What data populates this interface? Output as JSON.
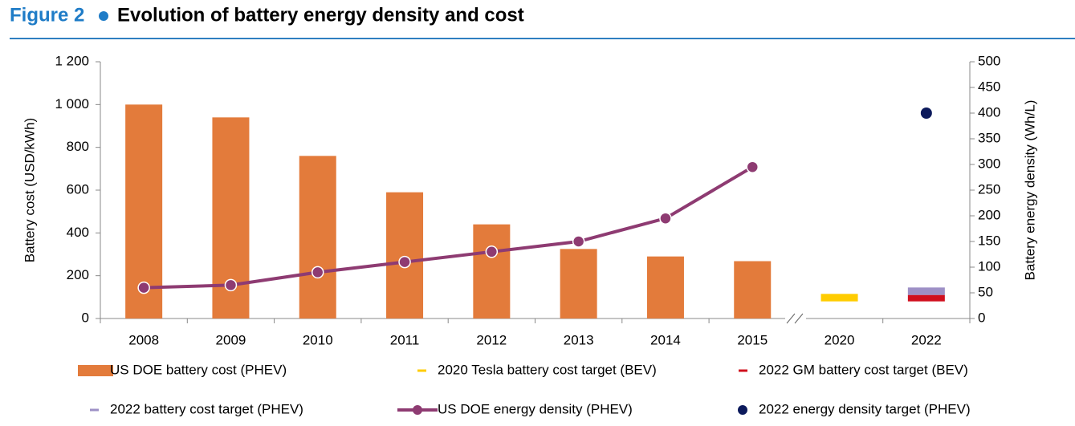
{
  "chart_data": {
    "type": "bar",
    "figure_label": "Figure 2",
    "title": "Evolution of battery energy density and cost",
    "y_label": "Battery cost (USD/kWh)",
    "y2_label": "Battery energy density (Wh/L)",
    "categories": [
      "2008",
      "2009",
      "2010",
      "2011",
      "2012",
      "2013",
      "2014",
      "2015",
      "2020",
      "2022"
    ],
    "ylim": [
      0,
      1200
    ],
    "yticks": [
      0,
      200,
      400,
      600,
      800,
      {
        "value": 1000,
        "label": "1 000"
      },
      {
        "value": 1200,
        "label": "1 200"
      }
    ],
    "y2lim": [
      0,
      500
    ],
    "y2ticks": [
      0,
      50,
      100,
      150,
      200,
      250,
      300,
      350,
      400,
      450,
      500
    ],
    "series": [
      {
        "name": "US DOE battery cost (PHEV)",
        "type": "bar",
        "color": "#e37b3b",
        "values": [
          1000,
          940,
          760,
          590,
          440,
          325,
          290,
          268,
          null,
          null
        ]
      },
      {
        "name": "2020 Tesla battery cost target (BEV)",
        "type": "range",
        "color": "#ffcc00",
        "values": [
          null,
          null,
          null,
          null,
          null,
          null,
          null,
          null,
          [
            80,
            115
          ],
          null
        ]
      },
      {
        "name": "2022 GM battery cost target (BEV)",
        "type": "range",
        "color": "#d0101e",
        "values": [
          null,
          null,
          null,
          null,
          null,
          null,
          null,
          null,
          null,
          [
            80,
            110
          ]
        ]
      },
      {
        "name": "2022 battery cost target (PHEV)",
        "type": "range",
        "color": "#9d90c6",
        "values": [
          null,
          null,
          null,
          null,
          null,
          null,
          null,
          null,
          null,
          [
            110,
            145
          ]
        ]
      },
      {
        "name": "US DOE energy density (PHEV)",
        "type": "line",
        "axis": "y2",
        "color": "#8e3b72",
        "values": [
          60,
          65,
          90,
          110,
          130,
          150,
          195,
          295,
          null,
          null
        ]
      },
      {
        "name": "2022 energy density target (PHEV)",
        "type": "scatter",
        "axis": "y2",
        "color": "#0c1a5c",
        "values": [
          null,
          null,
          null,
          null,
          null,
          null,
          null,
          null,
          null,
          400
        ]
      }
    ]
  }
}
